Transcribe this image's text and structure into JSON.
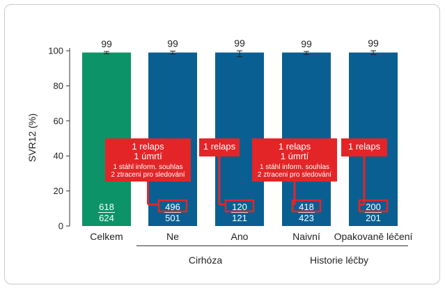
{
  "chart_data": {
    "type": "bar",
    "ylabel": "SVR12 (%)",
    "ylim": [
      0,
      100
    ],
    "yticks": [
      0,
      20,
      40,
      60,
      80,
      100
    ],
    "categories": [
      "Celkem",
      "Ne",
      "Ano",
      "Naivní",
      "Opakovaně léčení"
    ],
    "values": [
      99,
      99,
      99,
      99,
      99
    ],
    "value_labels": [
      "99",
      "99",
      "99",
      "99",
      "99"
    ],
    "error_bars": [
      [
        98.3,
        99.6
      ],
      [
        98.1,
        99.8
      ],
      [
        96.6,
        100
      ],
      [
        97.9,
        99.6
      ],
      [
        97.9,
        100
      ]
    ],
    "bar_colors": [
      "#0c9468",
      "#0a5f92",
      "#0a5f92",
      "#0a5f92",
      "#0a5f92"
    ],
    "numerators": [
      "618",
      "496",
      "120",
      "418",
      "200"
    ],
    "denominators": [
      "624",
      "501",
      "121",
      "423",
      "201"
    ],
    "groups": [
      {
        "label": "Cirhóza",
        "categories": [
          "Ne",
          "Ano"
        ]
      },
      {
        "label": "Historie léčby",
        "categories": [
          "Naivní",
          "Opakovaně léčení"
        ]
      }
    ],
    "annotations": [
      {
        "category": "Ne",
        "lines": [
          "1 relaps",
          "1 úmrtí",
          "1 stáhl inform. souhlas",
          "2 ztraceni pro sledování"
        ]
      },
      {
        "category": "Ano",
        "lines": [
          "1 relaps"
        ]
      },
      {
        "category": "Naivní",
        "lines": [
          "1 relaps",
          "1 úmrtí",
          "1 stáhl inform. souhlas",
          "2 ztraceni pro sledování"
        ]
      },
      {
        "category": "Opakovaně léčení",
        "lines": [
          "1 relaps"
        ]
      }
    ],
    "colors": {
      "highlight": "#e42527",
      "axis": "#333333"
    }
  }
}
